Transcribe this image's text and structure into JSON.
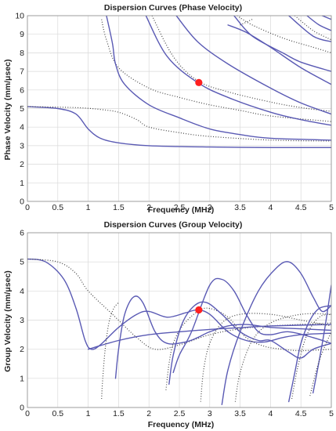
{
  "chart_data": [
    {
      "type": "line",
      "title": "Dispersion Curves (Phase Velocity)",
      "xlabel": "Frequency (MHz)",
      "ylabel": "Phase Velocity (mm/μsec)",
      "xlim": [
        0,
        5
      ],
      "ylim": [
        0,
        10
      ],
      "xticks": [
        "0",
        "0.5",
        "1",
        "1.5",
        "2",
        "2.5",
        "3",
        "3.5",
        "4",
        "4.5",
        "5"
      ],
      "yticks": [
        "0",
        "1",
        "2",
        "3",
        "4",
        "5",
        "6",
        "7",
        "8",
        "9",
        "10"
      ],
      "grid": true,
      "series": [
        {
          "style": "solid",
          "points": [
            [
              0,
              5.1
            ],
            [
              0.5,
              5.0
            ],
            [
              0.8,
              4.7
            ],
            [
              1.0,
              3.9
            ],
            [
              1.2,
              3.4
            ],
            [
              1.5,
              3.15
            ],
            [
              2.0,
              3.0
            ],
            [
              3.0,
              2.93
            ],
            [
              4.0,
              2.9
            ],
            [
              5.0,
              2.9
            ]
          ]
        },
        {
          "style": "dotted",
          "points": [
            [
              0,
              5.1
            ],
            [
              0.8,
              5.05
            ],
            [
              1.2,
              4.95
            ],
            [
              1.5,
              4.8
            ],
            [
              1.8,
              4.4
            ],
            [
              2.0,
              4.0
            ],
            [
              2.5,
              3.7
            ],
            [
              3.0,
              3.5
            ],
            [
              4.0,
              3.3
            ],
            [
              5.0,
              3.25
            ]
          ]
        },
        {
          "style": "dotted",
          "points": [
            [
              1.22,
              9.8
            ],
            [
              1.3,
              8.7
            ],
            [
              1.5,
              7.2
            ],
            [
              2.0,
              6.1
            ],
            [
              2.5,
              5.6
            ],
            [
              3.0,
              5.2
            ],
            [
              3.5,
              4.9
            ],
            [
              4.0,
              4.6
            ],
            [
              5.0,
              4.3
            ]
          ]
        },
        {
          "style": "solid",
          "points": [
            [
              1.3,
              10.0
            ],
            [
              1.4,
              8.5
            ],
            [
              1.45,
              7.4
            ],
            [
              1.6,
              6.3
            ],
            [
              2.0,
              5.2
            ],
            [
              2.5,
              4.5
            ],
            [
              3.0,
              3.9
            ],
            [
              3.5,
              3.6
            ],
            [
              4.0,
              3.4
            ],
            [
              5.0,
              3.3
            ]
          ]
        },
        {
          "style": "solid",
          "points": [
            [
              1.95,
              10.0
            ],
            [
              2.3,
              7.8
            ],
            [
              2.8,
              6.4
            ],
            [
              3.3,
              5.6
            ],
            [
              4.0,
              4.8
            ],
            [
              4.5,
              4.4
            ],
            [
              5.0,
              4.1
            ]
          ]
        },
        {
          "style": "dotted",
          "points": [
            [
              2.05,
              10.0
            ],
            [
              2.4,
              7.8
            ],
            [
              2.8,
              6.5
            ],
            [
              3.3,
              5.9
            ],
            [
              4.0,
              5.35
            ],
            [
              4.5,
              5.05
            ],
            [
              5.0,
              4.85
            ]
          ]
        },
        {
          "style": "solid",
          "points": [
            [
              2.45,
              10.0
            ],
            [
              2.8,
              8.6
            ],
            [
              3.3,
              7.4
            ],
            [
              4.0,
              6.1
            ],
            [
              4.5,
              5.3
            ],
            [
              5.0,
              4.7
            ]
          ]
        },
        {
          "style": "solid",
          "points": [
            [
              3.4,
              10.0
            ],
            [
              3.7,
              8.9
            ],
            [
              4.2,
              8.0
            ],
            [
              4.5,
              7.5
            ],
            [
              5.0,
              7.0
            ]
          ]
        },
        {
          "style": "dotted",
          "points": [
            [
              3.45,
              10.0
            ],
            [
              3.7,
              9.5
            ],
            [
              4.2,
              8.8
            ],
            [
              4.7,
              8.3
            ],
            [
              5.0,
              8.0
            ]
          ]
        },
        {
          "style": "solid",
          "points": [
            [
              3.3,
              9.5
            ],
            [
              3.6,
              9.1
            ],
            [
              4.0,
              8.3
            ],
            [
              4.5,
              7.2
            ],
            [
              5.0,
              6.3
            ]
          ]
        },
        {
          "style": "dotted",
          "points": [
            [
              3.5,
              9.5
            ],
            [
              3.7,
              9.8
            ]
          ]
        },
        {
          "style": "solid",
          "points": [
            [
              4.3,
              10.0
            ],
            [
              4.7,
              8.9
            ],
            [
              5.0,
              8.6
            ]
          ]
        },
        {
          "style": "dotted",
          "points": [
            [
              4.4,
              10.0
            ],
            [
              4.7,
              9.2
            ],
            [
              5.0,
              8.7
            ]
          ]
        },
        {
          "style": "solid",
          "points": [
            [
              4.6,
              10.0
            ],
            [
              4.8,
              9.5
            ],
            [
              5.0,
              9.2
            ]
          ]
        },
        {
          "style": "solid",
          "points": [
            [
              4.85,
              10.0
            ],
            [
              5.0,
              9.8
            ]
          ]
        }
      ],
      "marker": {
        "x": 2.82,
        "y": 6.4
      }
    },
    {
      "type": "line",
      "title": "Dispersion Curves (Group Velocity)",
      "xlabel": "Frequency (MHz)",
      "ylabel": "Group Velocity (mm/μsec)",
      "xlim": [
        0,
        5
      ],
      "ylim": [
        0,
        6
      ],
      "xticks": [
        "0",
        "0.5",
        "1",
        "1.5",
        "2",
        "2.5",
        "3",
        "3.5",
        "4",
        "4.5",
        "5"
      ],
      "yticks": [
        "0",
        "1",
        "2",
        "3",
        "4",
        "5",
        "6"
      ],
      "grid": true,
      "series": [
        {
          "style": "solid",
          "points": [
            [
              0,
              5.1
            ],
            [
              0.3,
              5.0
            ],
            [
              0.6,
              4.4
            ],
            [
              0.8,
              3.4
            ],
            [
              0.95,
              2.3
            ],
            [
              1.05,
              2.0
            ],
            [
              1.2,
              2.15
            ],
            [
              1.5,
              2.75
            ],
            [
              1.8,
              3.2
            ],
            [
              2.0,
              3.3
            ],
            [
              2.3,
              3.1
            ],
            [
              2.6,
              3.25
            ],
            [
              2.8,
              3.35
            ],
            [
              3.0,
              3.2
            ],
            [
              3.3,
              2.6
            ],
            [
              3.6,
              2.3
            ],
            [
              3.9,
              2.25
            ],
            [
              4.2,
              2.4
            ],
            [
              4.5,
              2.5
            ],
            [
              5.0,
              2.55
            ]
          ]
        },
        {
          "style": "dotted",
          "points": [
            [
              0,
              5.1
            ],
            [
              0.5,
              5.0
            ],
            [
              0.8,
              4.6
            ],
            [
              1.0,
              4.0
            ],
            [
              1.4,
              3.2
            ],
            [
              1.8,
              2.4
            ],
            [
              2.1,
              2.0
            ],
            [
              2.5,
              2.15
            ],
            [
              3.0,
              2.5
            ],
            [
              3.5,
              2.7
            ],
            [
              4.0,
              2.8
            ],
            [
              5.0,
              2.9
            ]
          ]
        },
        {
          "style": "solid",
          "points": [
            [
              1.0,
              2.0
            ],
            [
              1.5,
              2.3
            ],
            [
              2.0,
              2.5
            ],
            [
              2.5,
              2.6
            ],
            [
              3.0,
              2.68
            ],
            [
              3.5,
              2.74
            ],
            [
              4.0,
              2.8
            ],
            [
              5.0,
              2.85
            ]
          ]
        },
        {
          "style": "dotted",
          "points": [
            [
              1.22,
              0.3
            ],
            [
              1.24,
              1.0
            ],
            [
              1.28,
              2.0
            ],
            [
              1.34,
              2.9
            ],
            [
              1.42,
              3.4
            ],
            [
              1.5,
              3.6
            ]
          ]
        },
        {
          "style": "solid",
          "points": [
            [
              1.45,
              1.0
            ],
            [
              1.5,
              2.0
            ],
            [
              1.6,
              3.2
            ],
            [
              1.75,
              3.8
            ],
            [
              1.9,
              3.6
            ],
            [
              2.1,
              2.6
            ],
            [
              2.3,
              2.2
            ],
            [
              2.6,
              2.25
            ],
            [
              2.8,
              2.4
            ],
            [
              3.0,
              2.6
            ],
            [
              3.3,
              2.8
            ],
            [
              3.6,
              2.85
            ],
            [
              4.0,
              2.75
            ],
            [
              4.5,
              2.7
            ],
            [
              5.0,
              2.65
            ]
          ]
        },
        {
          "style": "dotted",
          "points": [
            [
              2.28,
              0.6
            ],
            [
              2.33,
              1.5
            ],
            [
              2.4,
              2.2
            ],
            [
              2.55,
              2.8
            ],
            [
              2.8,
              3.3
            ],
            [
              3.0,
              3.4
            ],
            [
              3.3,
              3.1
            ],
            [
              3.6,
              2.4
            ],
            [
              3.9,
              2.1
            ],
            [
              4.2,
              2.0
            ],
            [
              4.5,
              1.95
            ],
            [
              5.0,
              2.0
            ]
          ]
        },
        {
          "style": "solid",
          "points": [
            [
              2.33,
              0.8
            ],
            [
              2.4,
              1.8
            ],
            [
              2.55,
              2.9
            ],
            [
              2.75,
              3.5
            ],
            [
              2.95,
              3.6
            ],
            [
              3.2,
              3.2
            ],
            [
              3.5,
              2.6
            ],
            [
              3.8,
              2.3
            ],
            [
              4.0,
              2.3
            ],
            [
              4.3,
              1.9
            ],
            [
              4.5,
              1.7
            ],
            [
              4.7,
              2.0
            ],
            [
              5.0,
              2.2
            ]
          ]
        },
        {
          "style": "dotted",
          "points": [
            [
              2.85,
              0.2
            ],
            [
              2.9,
              1.3
            ],
            [
              3.0,
              2.2
            ],
            [
              3.2,
              2.9
            ],
            [
              3.5,
              3.2
            ],
            [
              4.0,
              3.2
            ],
            [
              4.5,
              3.0
            ],
            [
              5.0,
              2.8
            ]
          ]
        },
        {
          "style": "solid",
          "points": [
            [
              2.4,
              1.2
            ],
            [
              2.5,
              1.8
            ],
            [
              2.7,
              2.6
            ],
            [
              3.0,
              4.2
            ],
            [
              3.2,
              4.4
            ],
            [
              3.4,
              4.0
            ],
            [
              3.6,
              3.2
            ],
            [
              3.8,
              2.6
            ],
            [
              4.0,
              2.5
            ],
            [
              4.3,
              2.6
            ],
            [
              4.7,
              2.4
            ],
            [
              5.0,
              2.2
            ]
          ]
        },
        {
          "style": "dotted",
          "points": [
            [
              3.42,
              0.2
            ],
            [
              3.5,
              1.2
            ],
            [
              3.7,
              2.3
            ],
            [
              4.0,
              2.9
            ],
            [
              4.5,
              3.2
            ],
            [
              5.0,
              3.2
            ]
          ]
        },
        {
          "style": "solid",
          "points": [
            [
              3.2,
              0.1
            ],
            [
              3.3,
              1.3
            ],
            [
              3.5,
              2.6
            ],
            [
              3.8,
              4.0
            ],
            [
              4.1,
              4.8
            ],
            [
              4.3,
              5.0
            ],
            [
              4.5,
              4.6
            ],
            [
              4.7,
              3.8
            ],
            [
              4.85,
              3.3
            ],
            [
              5.0,
              3.5
            ]
          ]
        },
        {
          "style": "dotted",
          "points": [
            [
              4.35,
              0.3
            ],
            [
              4.45,
              1.4
            ],
            [
              4.6,
              2.5
            ],
            [
              4.8,
              3.1
            ],
            [
              5.0,
              3.2
            ]
          ]
        },
        {
          "style": "solid",
          "points": [
            [
              4.3,
              0.2
            ],
            [
              4.4,
              1.2
            ],
            [
              4.5,
              2.2
            ],
            [
              4.65,
              3.0
            ],
            [
              4.8,
              3.4
            ],
            [
              5.0,
              3.5
            ]
          ]
        },
        {
          "style": "solid",
          "points": [
            [
              4.7,
              0.5
            ],
            [
              4.8,
              1.6
            ],
            [
              4.9,
              2.8
            ],
            [
              5.0,
              4.2
            ]
          ]
        },
        {
          "style": "dotted",
          "points": [
            [
              4.65,
              0.4
            ],
            [
              4.8,
              1.6
            ],
            [
              5.0,
              2.6
            ]
          ]
        }
      ],
      "marker": {
        "x": 2.82,
        "y": 3.35
      }
    }
  ]
}
